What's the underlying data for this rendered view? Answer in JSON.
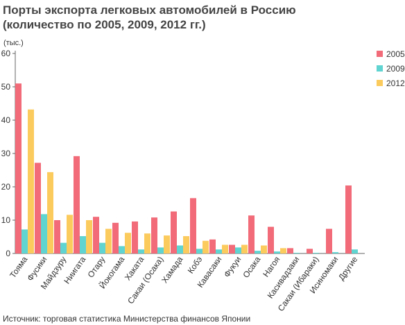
{
  "title_line1": "Порты экспорта легковых автомобилей в Россию",
  "title_line2": "(количество по 2005, 2009, 2012 гг.)",
  "unit_label": "(тыс.)",
  "source": "Источник: торговая статистика Министерства финансов Японии",
  "chart_data": {
    "type": "bar",
    "title": "Порты экспорта легковых автомобилей в Россию (количество по 2005, 2009, 2012 гг.)",
    "ylabel": "(тыс.)",
    "ylim": [
      0,
      60
    ],
    "yticks": [
      0,
      10,
      20,
      30,
      40,
      50,
      60
    ],
    "grid": false,
    "legend_position": "right",
    "categories": [
      "Тояма",
      "Фусики",
      "Майдзуру",
      "Ниигата",
      "Отару",
      "Йокогама",
      "Хаката",
      "Сакаи (Осака)",
      "Хамада",
      "Кобэ",
      "Кавасаки",
      "Фукуи",
      "Осака",
      "Нагоя",
      "Касивадзаки",
      "Сакаи (Ибараки)",
      "Исиномаки",
      "Другие"
    ],
    "series": [
      {
        "name": "2005",
        "color": "#f16b78",
        "values": [
          51,
          27.2,
          10,
          29.2,
          11,
          9.2,
          9.6,
          10.8,
          12.6,
          16.6,
          4.2,
          2.6,
          11.4,
          8,
          1.6,
          1.4,
          7.4,
          20.4
        ]
      },
      {
        "name": "2009",
        "color": "#5fd4d0",
        "values": [
          7.2,
          11.8,
          3.2,
          5.2,
          3.2,
          2.2,
          1.2,
          1.8,
          2.4,
          1.4,
          1.2,
          1.8,
          0.8,
          0.6,
          0.2,
          0.2,
          0.4,
          1.2
        ]
      },
      {
        "name": "2012",
        "color": "#fccb5e",
        "values": [
          43.2,
          24.4,
          11.6,
          10,
          7.4,
          6.2,
          6,
          5.4,
          5.2,
          3.8,
          2.6,
          2.6,
          2.4,
          1.6,
          0,
          0,
          0,
          0
        ]
      }
    ]
  }
}
